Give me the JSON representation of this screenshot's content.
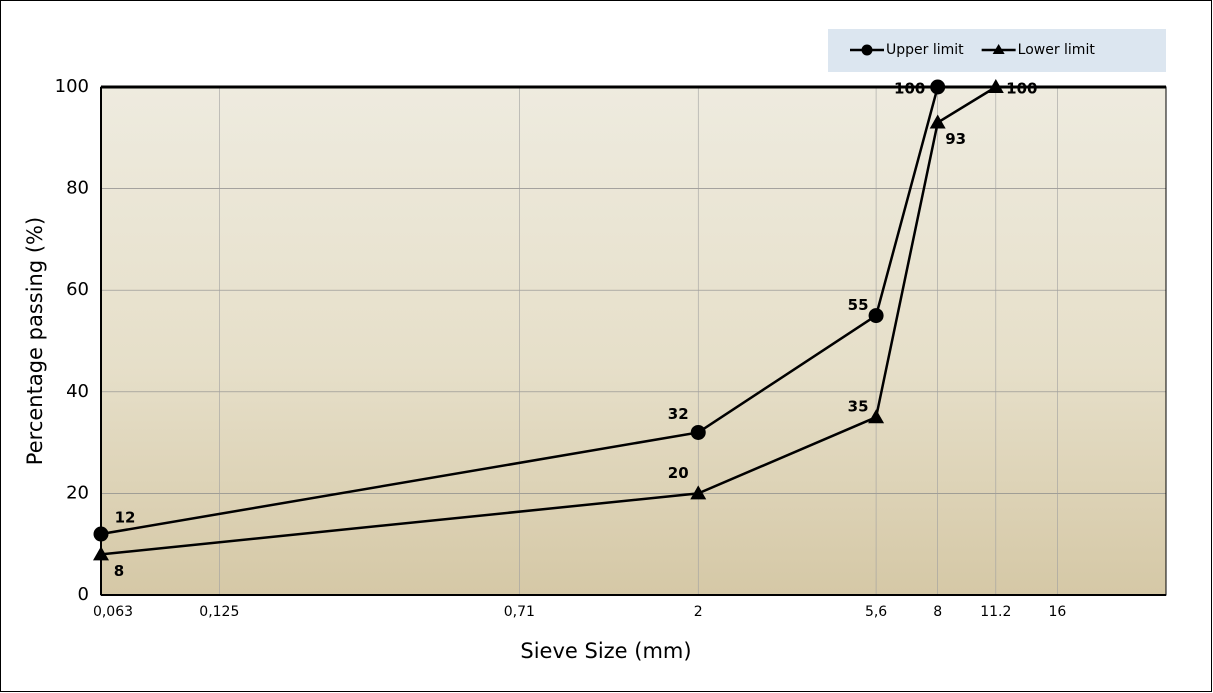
{
  "chart_data": {
    "type": "line",
    "xlabel": "Sieve Size (mm)",
    "ylabel": "Percentage passing (%)",
    "xscale": "log",
    "xlim": [
      0.063,
      30
    ],
    "xticks": [
      {
        "value": 0.063,
        "label": "0,063"
      },
      {
        "value": 0.125,
        "label": "0,125"
      },
      {
        "value": 0.71,
        "label": "0,71"
      },
      2,
      {
        "value": 5.6,
        "label": "5,6"
      },
      8,
      11.2,
      16
    ],
    "ylim": [
      0,
      100
    ],
    "yticks": [
      0,
      20,
      40,
      60,
      80,
      100
    ],
    "grid": true,
    "legend": "top-right",
    "series": [
      {
        "name": "Upper limit",
        "color": "#000000",
        "marker": "circle",
        "x": [
          0.063,
          2,
          5.6,
          8
        ],
        "values": [
          12,
          32,
          55,
          100
        ]
      },
      {
        "name": "Lower limit",
        "color": "#000000",
        "marker": "triangle",
        "x": [
          0.063,
          2,
          5.6,
          8,
          11.2
        ],
        "values": [
          8,
          20,
          35,
          93,
          100
        ]
      }
    ]
  }
}
